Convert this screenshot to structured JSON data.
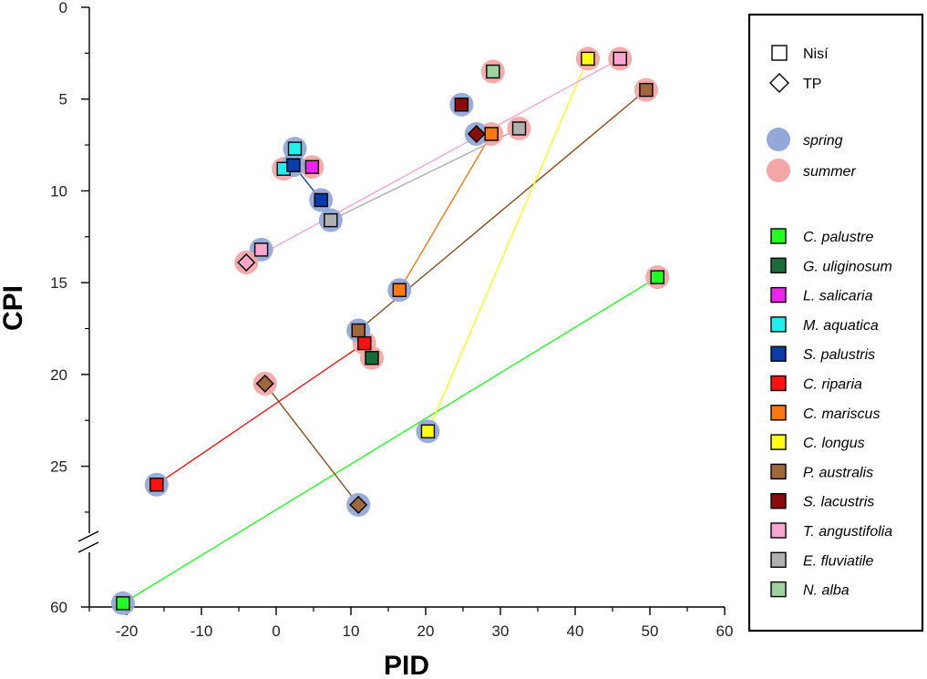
{
  "chart_data": {
    "type": "scatter",
    "title": "",
    "xlabel": "PID",
    "ylabel": "CPI",
    "xlim": [
      -25,
      60
    ],
    "ylim_main": [
      0,
      28
    ],
    "y_break_value": 60,
    "y_inverted": true,
    "grid": false,
    "x_ticks": [
      -20,
      -10,
      0,
      10,
      20,
      30,
      40,
      50,
      60
    ],
    "x_tick_labels": [
      "-20",
      "-10",
      "0",
      "10",
      "20",
      "30",
      "40",
      "50",
      "60"
    ],
    "y_ticks": [
      0,
      5,
      10,
      15,
      20,
      25
    ],
    "y_tick_labels": [
      "0",
      "5",
      "10",
      "15",
      "20",
      "25"
    ],
    "y_break_tick_label": "60",
    "site_legend": [
      {
        "name": "Nisí",
        "marker": "square"
      },
      {
        "name": "TP",
        "marker": "diamond"
      }
    ],
    "season_legend": [
      {
        "name": "spring",
        "color": "#93A8D8"
      },
      {
        "name": "summer",
        "color": "#F4A6A6"
      }
    ],
    "series": [
      {
        "name": "C. palustre",
        "color": "#22FF22",
        "points": [
          {
            "season": "spring",
            "site": "Nisí",
            "x": -20.5,
            "y": 58.0
          },
          {
            "season": "summer",
            "site": "Nisí",
            "x": 51.0,
            "y": 14.7
          }
        ]
      },
      {
        "name": "G. uliginosum",
        "color": "#1A6B3A",
        "points": [
          {
            "season": "summer",
            "site": "Nisí",
            "x": 12.8,
            "y": 19.1
          }
        ]
      },
      {
        "name": "L. salicaria",
        "color": "#EE22EE",
        "points": [
          {
            "season": "summer",
            "site": "Nisí",
            "x": 4.8,
            "y": 8.7
          }
        ]
      },
      {
        "name": "M. aquatica",
        "color": "#22EEEE",
        "points": [
          {
            "season": "spring",
            "site": "Nisí",
            "x": 2.5,
            "y": 7.7
          },
          {
            "season": "summer",
            "site": "Nisí",
            "x": 1.0,
            "y": 8.8
          }
        ]
      },
      {
        "name": "S. palustris",
        "color": "#0B3BA8",
        "points": [
          {
            "season": "spring",
            "site": "Nisí",
            "x": 2.3,
            "y": 8.6
          },
          {
            "season": "spring",
            "site": "Nisí",
            "x": 6.0,
            "y": 10.5
          }
        ]
      },
      {
        "name": "C. riparia",
        "color": "#FF1111",
        "points": [
          {
            "season": "spring",
            "site": "Nisí",
            "x": -16.0,
            "y": 26.0
          },
          {
            "season": "summer",
            "site": "Nisí",
            "x": 11.8,
            "y": 18.3
          }
        ]
      },
      {
        "name": "C. mariscus",
        "color": "#FF7711",
        "points": [
          {
            "season": "spring",
            "site": "Nisí",
            "x": 16.5,
            "y": 15.4
          },
          {
            "season": "summer",
            "site": "Nisí",
            "x": 28.8,
            "y": 6.9
          }
        ]
      },
      {
        "name": "C. longus",
        "color": "#FFFF11",
        "points": [
          {
            "season": "spring",
            "site": "Nisí",
            "x": 20.3,
            "y": 23.1
          },
          {
            "season": "summer",
            "site": "Nisí",
            "x": 41.7,
            "y": 2.8
          }
        ]
      },
      {
        "name": "P. australis",
        "color": "#A0683A",
        "points": [
          {
            "season": "spring",
            "site": "Nisí",
            "x": 11.0,
            "y": 17.6
          },
          {
            "season": "summer",
            "site": "Nisí",
            "x": 49.5,
            "y": 4.5
          },
          {
            "season": "summer",
            "site": "TP",
            "x": -1.5,
            "y": 20.5
          },
          {
            "season": "spring",
            "site": "TP",
            "x": 11.0,
            "y": 27.1
          }
        ]
      },
      {
        "name": "S. lacustris",
        "color": "#8B0A0A",
        "points": [
          {
            "season": "spring",
            "site": "Nisí",
            "x": 24.8,
            "y": 5.3
          },
          {
            "season": "spring",
            "site": "TP",
            "x": 26.8,
            "y": 6.9
          }
        ]
      },
      {
        "name": "T. angustifolia",
        "color": "#F7A6D0",
        "points": [
          {
            "season": "spring",
            "site": "Nisí",
            "x": -2.0,
            "y": 13.2
          },
          {
            "season": "summer",
            "site": "Nisí",
            "x": 46.0,
            "y": 2.8
          },
          {
            "season": "summer",
            "site": "TP",
            "x": -4.0,
            "y": 13.9
          }
        ]
      },
      {
        "name": "E. fluviatile",
        "color": "#B0B0B0",
        "points": [
          {
            "season": "spring",
            "site": "Nisí",
            "x": 7.3,
            "y": 11.6
          },
          {
            "season": "summer",
            "site": "Nisí",
            "x": 32.5,
            "y": 6.6
          }
        ]
      },
      {
        "name": "N. alba",
        "color": "#9FD09F",
        "points": [
          {
            "season": "summer",
            "site": "Nisí",
            "x": 29.0,
            "y": 3.5
          }
        ]
      }
    ],
    "connecting_lines": [
      {
        "series": "C. palustre",
        "color": "#22FF22",
        "from": [
          -20.5,
          58.0
        ],
        "to": [
          51.0,
          14.7
        ]
      },
      {
        "series": "C. riparia",
        "color": "#FF1111",
        "from": [
          -16.0,
          26.0
        ],
        "to": [
          11.8,
          18.3
        ]
      },
      {
        "series": "P. australis",
        "color": "#8B4A1A",
        "from": [
          11.0,
          17.6
        ],
        "to": [
          49.5,
          4.5
        ]
      },
      {
        "series": "P. australis",
        "color": "#8B4A1A",
        "from": [
          -1.5,
          20.5
        ],
        "to": [
          11.0,
          27.1
        ]
      },
      {
        "series": "C. mariscus",
        "color": "#FF7711",
        "from": [
          16.5,
          15.4
        ],
        "to": [
          28.8,
          6.9
        ]
      },
      {
        "series": "C. longus",
        "color": "#FFFF11",
        "from": [
          20.3,
          23.1
        ],
        "to": [
          41.7,
          2.8
        ]
      },
      {
        "series": "T. angustifolia",
        "color": "#F7A6D0",
        "from": [
          -4.0,
          13.9
        ],
        "to": [
          46.0,
          2.8
        ]
      },
      {
        "series": "E. fluviatile",
        "color": "#B0B0B0",
        "from": [
          7.3,
          11.6
        ],
        "to": [
          32.5,
          6.6
        ]
      },
      {
        "series": "S. palustris",
        "color": "#0B3BA8",
        "from": [
          2.3,
          8.6
        ],
        "to": [
          6.0,
          10.5
        ]
      }
    ]
  }
}
